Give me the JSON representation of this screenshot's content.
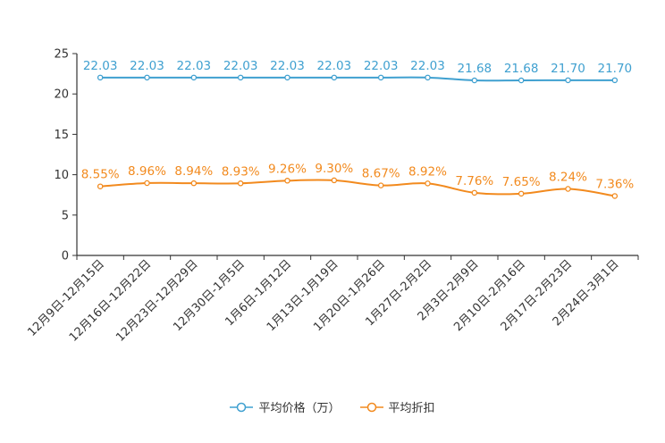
{
  "chart_data": {
    "type": "line",
    "categories": [
      "12月9日-12月15日",
      "12月16日-12月22日",
      "12月23日-12月29日",
      "12月30日-1月5日",
      "1月6日-1月12日",
      "1月13日-1月19日",
      "1月20日-1月26日",
      "1月27日-2月2日",
      "2月3日-2月9日",
      "2月10日-2月16日",
      "2月17日-2月23日",
      "2月24日-3月1日"
    ],
    "series": [
      {
        "name": "平均价格（万）",
        "color": "#3fa0d0",
        "values": [
          22.03,
          22.03,
          22.03,
          22.03,
          22.03,
          22.03,
          22.03,
          22.03,
          21.68,
          21.68,
          21.7,
          21.7
        ],
        "labels": [
          "22.03",
          "22.03",
          "22.03",
          "22.03",
          "22.03",
          "22.03",
          "22.03",
          "22.03",
          "21.68",
          "21.68",
          "21.70",
          "21.70"
        ]
      },
      {
        "name": "平均折扣",
        "color": "#f28a1e",
        "values": [
          8.55,
          8.96,
          8.94,
          8.93,
          9.26,
          9.3,
          8.67,
          8.92,
          7.76,
          7.65,
          8.24,
          7.36
        ],
        "labels": [
          "8.55%",
          "8.96%",
          "8.94%",
          "8.93%",
          "9.26%",
          "9.30%",
          "8.67%",
          "8.92%",
          "7.76%",
          "7.65%",
          "8.24%",
          "7.36%"
        ]
      }
    ],
    "ylim": [
      0,
      25
    ],
    "yticks": [
      0,
      5,
      10,
      15,
      20,
      25
    ],
    "legend_position": "bottom-center"
  }
}
